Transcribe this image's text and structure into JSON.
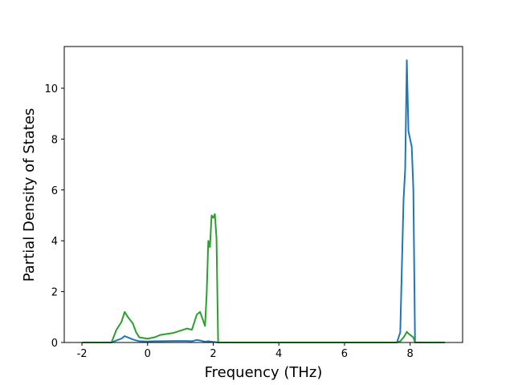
{
  "chart_data": {
    "type": "line",
    "x_label": "Frequency (THz)",
    "y_label": "Partial Density of States",
    "x": [
      -1.99,
      -1.1,
      -0.95,
      -0.8,
      -0.7,
      -0.6,
      -0.45,
      -0.35,
      -0.25,
      0,
      0.2,
      0.4,
      0.8,
      1.2,
      1.35,
      1.5,
      1.6,
      1.75,
      1.8,
      1.85,
      1.9,
      1.95,
      2.0,
      2.05,
      2.1,
      2.15,
      7.6,
      7.7,
      7.8,
      7.85,
      7.9,
      7.95,
      8.05,
      8.1,
      8.15,
      9.06
    ],
    "series": [
      {
        "color": "#1f77b4",
        "values": [
          0,
          0,
          0.08,
          0.15,
          0.25,
          0.2,
          0.12,
          0.08,
          0.05,
          0.04,
          0.05,
          0.05,
          0.06,
          0.06,
          0.05,
          0.1,
          0.08,
          0.03,
          0.04,
          0.05,
          0.04,
          0.03,
          0.02,
          0.02,
          0.01,
          0,
          0,
          0.4,
          5.6,
          6.8,
          11.1,
          8.3,
          7.7,
          6.0,
          0,
          0
        ]
      },
      {
        "color": "#2ca02c",
        "values": [
          0,
          0,
          0.5,
          0.8,
          1.2,
          1.0,
          0.75,
          0.4,
          0.2,
          0.15,
          0.2,
          0.3,
          0.38,
          0.55,
          0.5,
          1.1,
          1.2,
          0.65,
          1.9,
          4.0,
          3.75,
          5.0,
          4.9,
          5.05,
          4.1,
          0,
          0,
          0.05,
          0.2,
          0.3,
          0.42,
          0.35,
          0.25,
          0.2,
          0,
          0
        ]
      }
    ],
    "xlim": [
      -2.54,
      9.6
    ],
    "ylim": [
      0,
      11.64
    ],
    "xticks": [
      -2,
      0,
      2,
      4,
      6,
      8
    ],
    "yticks": [
      0,
      2,
      4,
      6,
      8,
      10
    ]
  }
}
